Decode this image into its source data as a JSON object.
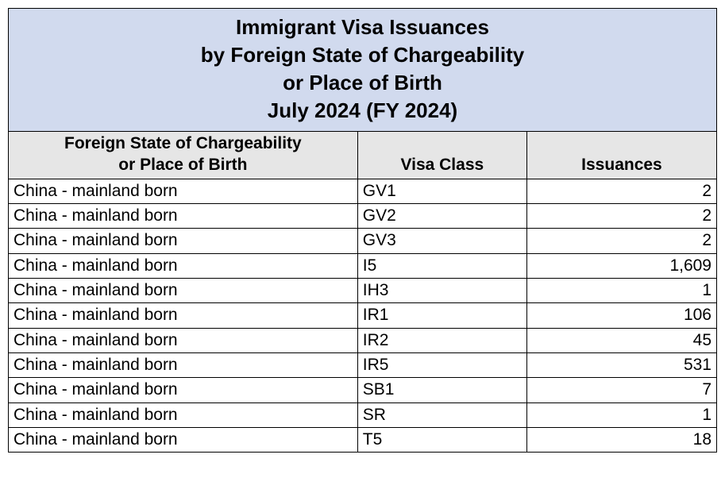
{
  "title_lines": [
    "Immigrant Visa Issuances",
    "by Foreign State of Chargeability",
    "or Place of Birth",
    "July 2024 (FY 2024)"
  ],
  "table": {
    "type": "table",
    "background_color": "#ffffff",
    "border_color": "#000000",
    "title_bg": "#d1daee",
    "header_bg": "#e6e6e6",
    "title_fontsize": 26,
    "header_fontsize": 21,
    "cell_fontsize": 21,
    "column_widths_pct": [
      49.3,
      23.9,
      26.8
    ],
    "columns": [
      {
        "label_lines": [
          "Foreign State of Chargeability",
          "or Place of Birth"
        ],
        "align": "left"
      },
      {
        "label_lines": [
          "Visa Class"
        ],
        "align": "left"
      },
      {
        "label_lines": [
          "Issuances"
        ],
        "align": "right"
      }
    ],
    "rows": [
      [
        "China - mainland born",
        "GV1",
        "2"
      ],
      [
        "China - mainland born",
        "GV2",
        "2"
      ],
      [
        "China - mainland born",
        "GV3",
        "2"
      ],
      [
        "China - mainland born",
        "I5",
        "1,609"
      ],
      [
        "China - mainland born",
        "IH3",
        "1"
      ],
      [
        "China - mainland born",
        "IR1",
        "106"
      ],
      [
        "China - mainland born",
        "IR2",
        "45"
      ],
      [
        "China - mainland born",
        "IR5",
        "531"
      ],
      [
        "China - mainland born",
        "SB1",
        "7"
      ],
      [
        "China - mainland born",
        "SR",
        "1"
      ],
      [
        "China - mainland born",
        "T5",
        "18"
      ]
    ]
  }
}
